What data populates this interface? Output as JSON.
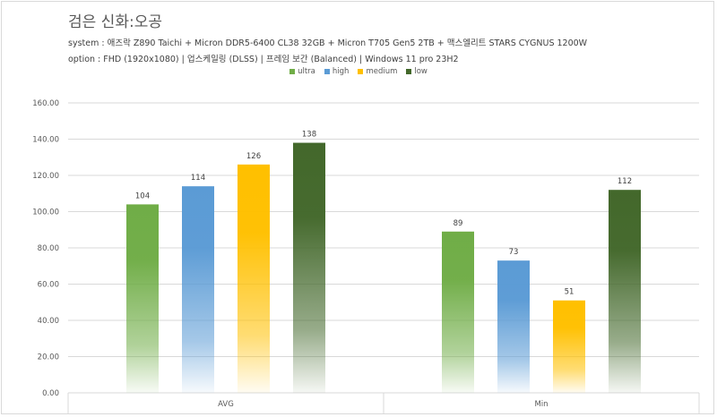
{
  "chart_data": {
    "type": "bar",
    "title": "검은 신화:오공",
    "subtitle_lines": [
      "system : 애즈락 Z890 Taichi + Micron DDR5-6400 CL38 32GB + Micron T705 Gen5 2TB + 맥스엘리트 STARS CYGNUS 1200W",
      "option : FHD (1920x1080) | 업스케일링 (DLSS) | 프레임 보간 (Balanced) | Windows 11 pro 23H2"
    ],
    "categories": [
      "AVG",
      "Min"
    ],
    "series": [
      {
        "name": "ultra",
        "values": [
          104,
          89
        ],
        "color": "#70ad47"
      },
      {
        "name": "high",
        "values": [
          114,
          73
        ],
        "color": "#5b9bd5"
      },
      {
        "name": "medium",
        "values": [
          126,
          51
        ],
        "color": "#ffc000"
      },
      {
        "name": "low",
        "values": [
          138,
          112
        ],
        "color": "#43682b"
      }
    ],
    "ylim": [
      0,
      160
    ],
    "yticks": [
      "0.00",
      "20.00",
      "40.00",
      "60.00",
      "80.00",
      "100.00",
      "120.00",
      "140.00",
      "160.00"
    ],
    "ytick_values": [
      0,
      20,
      40,
      60,
      80,
      100,
      120,
      140,
      160
    ],
    "grid": true,
    "legend_position": "top-center"
  }
}
